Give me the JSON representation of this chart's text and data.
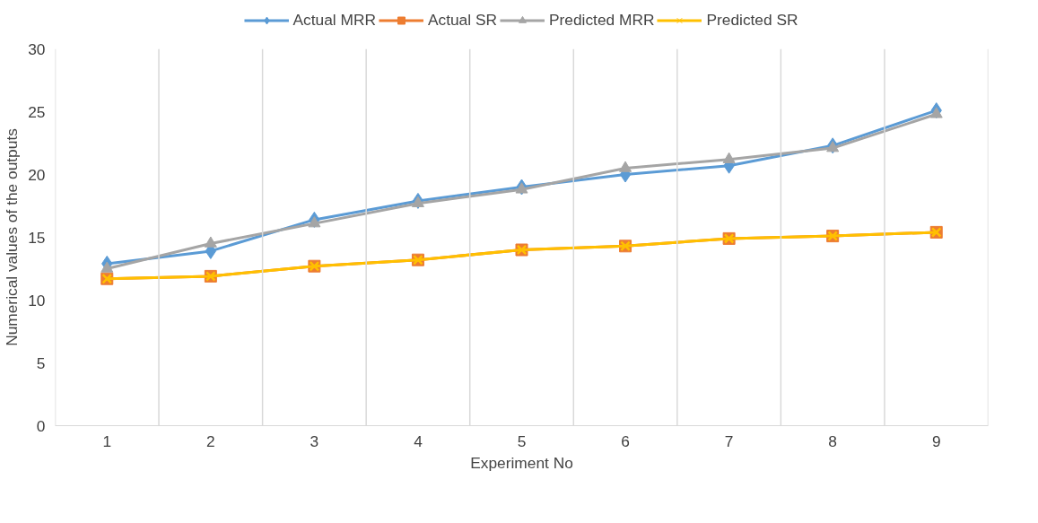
{
  "chart_data": {
    "type": "line",
    "xlabel": "Experiment No",
    "ylabel": "Numerical values of the outputs",
    "categories": [
      "1",
      "2",
      "3",
      "4",
      "5",
      "6",
      "7",
      "8",
      "9"
    ],
    "series": [
      {
        "name": "Actual MRR",
        "color": "#5b9bd5",
        "marker": "diamond",
        "values": [
          12.9,
          13.9,
          16.4,
          17.9,
          19.0,
          20.0,
          20.7,
          22.3,
          25.1
        ]
      },
      {
        "name": "Actual SR",
        "color": "#ed7d31",
        "marker": "square",
        "values": [
          11.7,
          11.9,
          12.7,
          13.2,
          14.0,
          14.3,
          14.9,
          15.1,
          15.4
        ]
      },
      {
        "name": "Predicted MRR",
        "color": "#a5a5a5",
        "marker": "triangle",
        "values": [
          12.5,
          14.5,
          16.1,
          17.7,
          18.8,
          20.5,
          21.2,
          22.1,
          24.8
        ]
      },
      {
        "name": "Predicted SR",
        "color": "#ffc000",
        "marker": "cross",
        "values": [
          11.7,
          11.9,
          12.7,
          13.2,
          14.0,
          14.3,
          14.9,
          15.1,
          15.4
        ]
      }
    ],
    "ylim": [
      0,
      30
    ],
    "yticks": [
      0,
      5,
      10,
      15,
      20,
      25,
      30
    ],
    "grid": "x",
    "legend": "top"
  }
}
